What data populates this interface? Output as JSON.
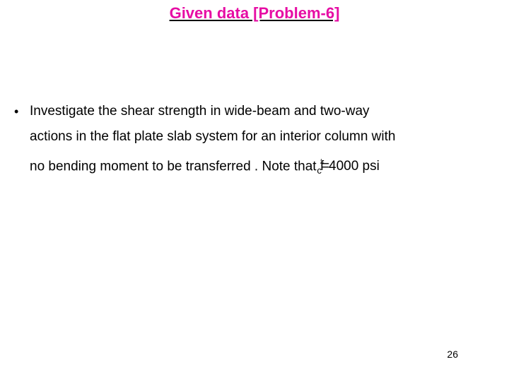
{
  "title": {
    "text": "Given data  [Problem-6]",
    "color": "#e60da4"
  },
  "bullet": {
    "marker": "•",
    "line1": "Investigate the shear strength in wide-beam and two-way",
    "line2": "actions in the flat plate slab system for an interior column with",
    "line3_prefix": "no bending moment to be transferred . Note that ",
    "formula_var": "f",
    "formula_prime": "′",
    "formula_sub": "c",
    "formula_eq": "=",
    "formula_val": "4000 psi"
  },
  "page_number": "26",
  "colors": {
    "title": "#e60da4",
    "text": "#000000",
    "background": "#ffffff"
  }
}
